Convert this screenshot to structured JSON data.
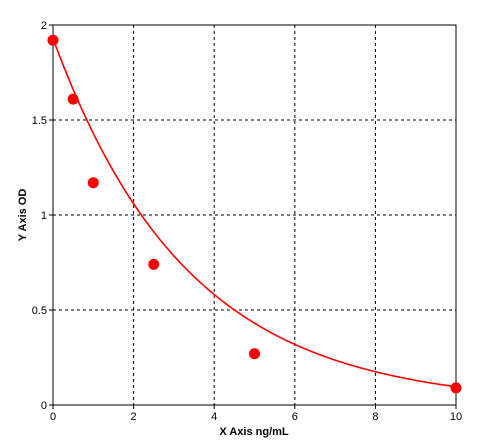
{
  "chart_data": {
    "type": "scatter",
    "title": "",
    "xlabel": "X Axis ng/mL",
    "ylabel": "Y Axis OD",
    "xlim": [
      0,
      10
    ],
    "ylim": [
      0,
      2
    ],
    "x_ticks": [
      0,
      2,
      4,
      6,
      8,
      10
    ],
    "y_ticks": [
      0,
      0.5,
      1,
      1.5,
      2
    ],
    "x_tick_labels": [
      "0",
      "2",
      "4",
      "6",
      "8",
      "10"
    ],
    "y_tick_labels": [
      "0",
      "0.5",
      "1",
      "1.5",
      "2"
    ],
    "grid": true,
    "series": [
      {
        "x": [
          0,
          0.5,
          1,
          2.5,
          5,
          10
        ],
        "y": [
          1.92,
          1.61,
          1.17,
          0.74,
          0.27,
          0.09
        ],
        "color": "#ff0000",
        "fit_curve": true
      }
    ]
  }
}
